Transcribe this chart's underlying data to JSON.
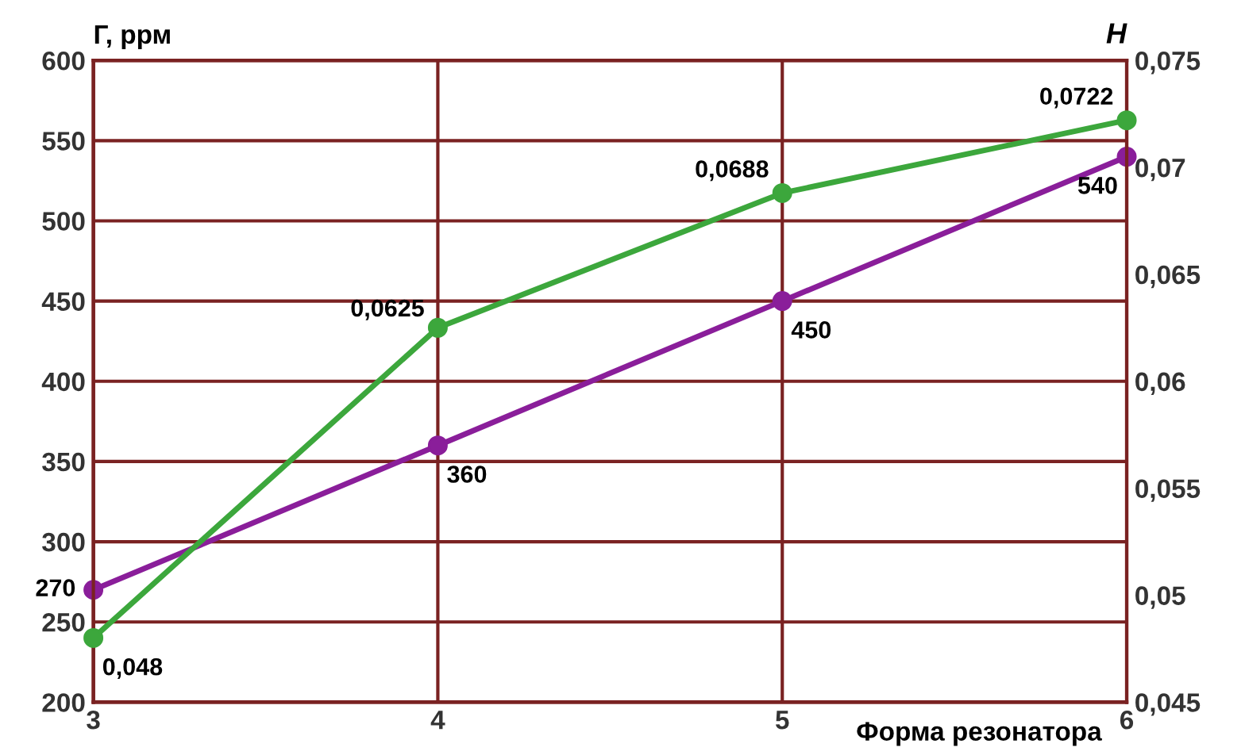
{
  "chart_data": {
    "type": "line",
    "xlabel": "Форма резонатора",
    "ylabel": "Г, ррм",
    "y2label": "H",
    "x": [
      3,
      4,
      5,
      6
    ],
    "xlim": [
      3,
      6
    ],
    "xticks": [
      3,
      4,
      5,
      6
    ],
    "ylim": [
      200,
      600
    ],
    "yticks": [
      200,
      250,
      300,
      350,
      400,
      450,
      500,
      550,
      600
    ],
    "y2lim": [
      0.045,
      0.075
    ],
    "y2ticks": [
      {
        "value": 0.045,
        "label": "0,045"
      },
      {
        "value": 0.05,
        "label": "0,05"
      },
      {
        "value": 0.055,
        "label": "0,055"
      },
      {
        "value": 0.06,
        "label": "0,06"
      },
      {
        "value": 0.065,
        "label": "0,065"
      },
      {
        "value": 0.07,
        "label": "0,07"
      },
      {
        "value": 0.075,
        "label": "0,075"
      }
    ],
    "grid": true,
    "marker": "circle",
    "line_style": "solid",
    "series": [
      {
        "color": "#8a1e9a",
        "values": [
          270,
          360,
          450,
          540
        ],
        "value_labels": [
          "270",
          "360",
          "450",
          "540"
        ]
      },
      {
        "color": "#3ca73c",
        "axis": "y2",
        "values": [
          0.048,
          0.0625,
          0.0688,
          0.0722
        ],
        "value_labels": [
          "0,048",
          "0,0625",
          "0,0688",
          "0,0722"
        ]
      }
    ]
  }
}
